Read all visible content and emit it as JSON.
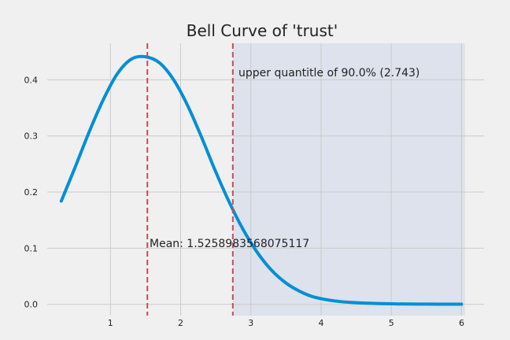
{
  "chart_data": {
    "type": "line",
    "title": "Bell Curve of 'trust'",
    "xlabel": "",
    "ylabel": "",
    "xlim": [
      0.1,
      6.32
    ],
    "ylim": [
      -0.02,
      0.465
    ],
    "xticks": [
      1,
      2,
      3,
      4,
      5,
      6
    ],
    "yticks": [
      0.0,
      0.1,
      0.2,
      0.3,
      0.4
    ],
    "xtick_labels": [
      "1",
      "2",
      "3",
      "4",
      "5",
      "6"
    ],
    "ytick_labels": [
      "0.0",
      "0.1",
      "0.2",
      "0.3",
      "0.4"
    ],
    "grid": true,
    "series": [
      {
        "x": [
          0.3,
          0.5,
          0.7,
          0.9,
          1.1,
          1.3,
          1.5,
          1.7,
          1.9,
          2.1,
          2.3,
          2.5,
          2.7,
          2.9,
          3.1,
          3.3,
          3.5,
          3.7,
          3.9,
          4.2,
          4.5,
          5.0,
          5.5,
          6.0
        ],
        "y": [
          0.184,
          0.245,
          0.308,
          0.365,
          0.411,
          0.437,
          0.441,
          0.43,
          0.4,
          0.354,
          0.297,
          0.236,
          0.18,
          0.131,
          0.091,
          0.06,
          0.038,
          0.023,
          0.013,
          0.006,
          0.003,
          0.001,
          0.0005,
          0.0003
        ]
      }
    ],
    "vlines": [
      {
        "x": 1.526,
        "label": "Mean: 1.5258983568075117"
      },
      {
        "x": 2.743,
        "label": "upper quantitle of 90.0% (2.743)"
      }
    ],
    "shaded_region": {
      "x_start": 2.743,
      "x_end": 6.05
    },
    "colors": {
      "background": "#f0f0f0",
      "grid": "#cbcbcb",
      "line": "#008fd5",
      "vline": "#c44e52",
      "shade": "#dde2ec"
    }
  }
}
